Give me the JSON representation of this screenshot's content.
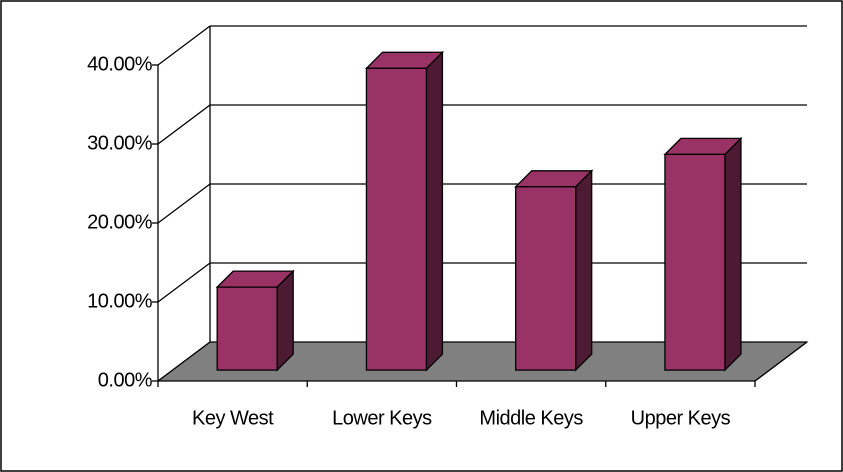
{
  "chart_data": {
    "type": "bar3d",
    "categories": [
      "Key West",
      "Lower Keys",
      "Middle Keys",
      "Upper Keys"
    ],
    "values": [
      10.5,
      38.2,
      23.2,
      27.3
    ],
    "color": "#993366",
    "side_color": "#4d1a33",
    "floor_color": "#808080",
    "ylim": [
      0,
      40
    ],
    "yticks": [
      {
        "value": 0,
        "label": "0.00%"
      },
      {
        "value": 10,
        "label": "10.00%"
      },
      {
        "value": 20,
        "label": "20.00%"
      },
      {
        "value": 30,
        "label": "30.00%"
      },
      {
        "value": 40,
        "label": "40.00%"
      }
    ],
    "grid": true
  }
}
